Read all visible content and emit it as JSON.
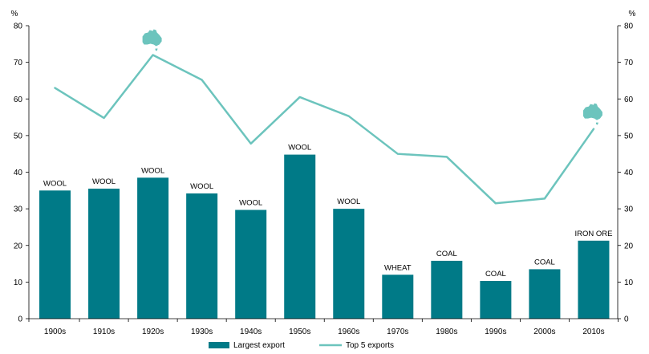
{
  "chart_data": {
    "type": "bar",
    "left_unit": "%",
    "right_unit": "%",
    "ylim": [
      0,
      80
    ],
    "yticks": [
      0,
      10,
      20,
      30,
      40,
      50,
      60,
      70,
      80
    ],
    "grid": false,
    "legend_position": "bottom-center",
    "categories": [
      "1900s",
      "1910s",
      "1920s",
      "1930s",
      "1940s",
      "1950s",
      "1960s",
      "1970s",
      "1980s",
      "1990s",
      "2000s",
      "2010s"
    ],
    "series": [
      {
        "name": "Largest export",
        "type": "bar",
        "color": "#007a87",
        "values": [
          35.0,
          35.5,
          38.5,
          34.2,
          29.7,
          44.8,
          30.0,
          12.0,
          15.8,
          10.3,
          13.5,
          21.3
        ],
        "labels": [
          "WOOL",
          "WOOL",
          "WOOL",
          "WOOL",
          "WOOL",
          "WOOL",
          "WOOL",
          "WHEAT",
          "COAL",
          "COAL",
          "COAL",
          "IRON ORE"
        ]
      },
      {
        "name": "Top 5 exports",
        "type": "line",
        "color": "#6cc4bd",
        "values": [
          63.0,
          54.8,
          72.0,
          65.2,
          47.8,
          60.5,
          55.3,
          45.0,
          44.2,
          31.5,
          32.8,
          51.8
        ]
      }
    ],
    "markers": [
      {
        "icon": "australia-map-icon",
        "category": "1920s"
      },
      {
        "icon": "australia-map-icon",
        "category": "2010s"
      }
    ]
  }
}
